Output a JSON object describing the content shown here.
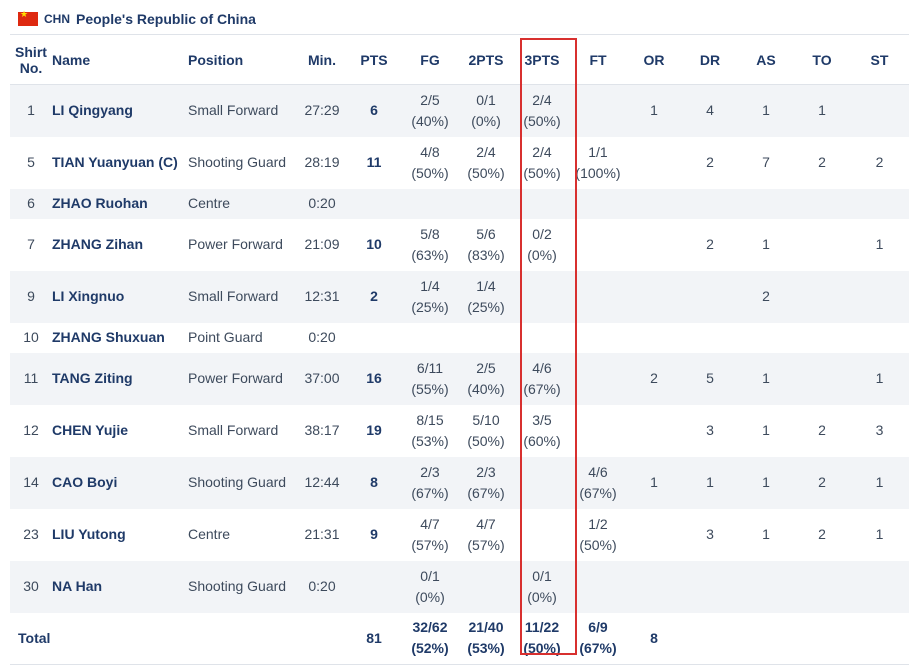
{
  "team": {
    "code": "CHN",
    "name": "People's Republic of China",
    "flag_icon": "china-flag-icon",
    "flag_color": "#de2910"
  },
  "columns": {
    "shirt_line1": "Shirt",
    "shirt_line2": "No.",
    "name": "Name",
    "position": "Position",
    "min": "Min.",
    "pts": "PTS",
    "fg": "FG",
    "pts2": "2PTS",
    "pts3": "3PTS",
    "ft": "FT",
    "or": "OR",
    "dr": "DR",
    "as": "AS",
    "to": "TO",
    "st": "ST"
  },
  "players": [
    {
      "no": "1",
      "name": "LI Qingyang",
      "position": "Small Forward",
      "min": "27:29",
      "pts": "6",
      "fg_a": "2/5",
      "fg_b": "(40%)",
      "p2_a": "0/1",
      "p2_b": "(0%)",
      "p3_a": "2/4",
      "p3_b": "(50%)",
      "ft_a": "",
      "ft_b": "",
      "or": "1",
      "dr": "4",
      "as": "1",
      "to": "1",
      "st": ""
    },
    {
      "no": "5",
      "name": "TIAN Yuanyuan  (C)",
      "position": "Shooting Guard",
      "min": "28:19",
      "pts": "11",
      "fg_a": "4/8",
      "fg_b": "(50%)",
      "p2_a": "2/4",
      "p2_b": "(50%)",
      "p3_a": "2/4",
      "p3_b": "(50%)",
      "ft_a": "1/1",
      "ft_b": "(100%)",
      "or": "",
      "dr": "2",
      "as": "7",
      "to": "2",
      "st": "2"
    },
    {
      "no": "6",
      "name": "ZHAO Ruohan",
      "position": "Centre",
      "min": "0:20",
      "pts": "",
      "fg_a": "",
      "fg_b": "",
      "p2_a": "",
      "p2_b": "",
      "p3_a": "",
      "p3_b": "",
      "ft_a": "",
      "ft_b": "",
      "or": "",
      "dr": "",
      "as": "",
      "to": "",
      "st": ""
    },
    {
      "no": "7",
      "name": "ZHANG Zihan",
      "position": "Power Forward",
      "min": "21:09",
      "pts": "10",
      "fg_a": "5/8",
      "fg_b": "(63%)",
      "p2_a": "5/6",
      "p2_b": "(83%)",
      "p3_a": "0/2",
      "p3_b": "(0%)",
      "ft_a": "",
      "ft_b": "",
      "or": "",
      "dr": "2",
      "as": "1",
      "to": "",
      "st": "1"
    },
    {
      "no": "9",
      "name": "LI Xingnuo",
      "position": "Small Forward",
      "min": "12:31",
      "pts": "2",
      "fg_a": "1/4",
      "fg_b": "(25%)",
      "p2_a": "1/4",
      "p2_b": "(25%)",
      "p3_a": "",
      "p3_b": "",
      "ft_a": "",
      "ft_b": "",
      "or": "",
      "dr": "",
      "as": "2",
      "to": "",
      "st": ""
    },
    {
      "no": "10",
      "name": "ZHANG Shuxuan",
      "position": "Point Guard",
      "min": "0:20",
      "pts": "",
      "fg_a": "",
      "fg_b": "",
      "p2_a": "",
      "p2_b": "",
      "p3_a": "",
      "p3_b": "",
      "ft_a": "",
      "ft_b": "",
      "or": "",
      "dr": "",
      "as": "",
      "to": "",
      "st": ""
    },
    {
      "no": "11",
      "name": "TANG Ziting",
      "position": "Power Forward",
      "min": "37:00",
      "pts": "16",
      "fg_a": "6/11",
      "fg_b": "(55%)",
      "p2_a": "2/5",
      "p2_b": "(40%)",
      "p3_a": "4/6",
      "p3_b": "(67%)",
      "ft_a": "",
      "ft_b": "",
      "or": "2",
      "dr": "5",
      "as": "1",
      "to": "",
      "st": "1"
    },
    {
      "no": "12",
      "name": "CHEN Yujie",
      "position": "Small Forward",
      "min": "38:17",
      "pts": "19",
      "fg_a": "8/15",
      "fg_b": "(53%)",
      "p2_a": "5/10",
      "p2_b": "(50%)",
      "p3_a": "3/5",
      "p3_b": "(60%)",
      "ft_a": "",
      "ft_b": "",
      "or": "",
      "dr": "3",
      "as": "1",
      "to": "2",
      "st": "3"
    },
    {
      "no": "14",
      "name": "CAO Boyi",
      "position": "Shooting Guard",
      "min": "12:44",
      "pts": "8",
      "fg_a": "2/3",
      "fg_b": "(67%)",
      "p2_a": "2/3",
      "p2_b": "(67%)",
      "p3_a": "",
      "p3_b": "",
      "ft_a": "4/6",
      "ft_b": "(67%)",
      "or": "1",
      "dr": "1",
      "as": "1",
      "to": "2",
      "st": "1"
    },
    {
      "no": "23",
      "name": "LIU Yutong",
      "position": "Centre",
      "min": "21:31",
      "pts": "9",
      "fg_a": "4/7",
      "fg_b": "(57%)",
      "p2_a": "4/7",
      "p2_b": "(57%)",
      "p3_a": "",
      "p3_b": "",
      "ft_a": "1/2",
      "ft_b": "(50%)",
      "or": "",
      "dr": "3",
      "as": "1",
      "to": "2",
      "st": "1"
    },
    {
      "no": "30",
      "name": "NA Han",
      "position": "Shooting Guard",
      "min": "0:20",
      "pts": "",
      "fg_a": "0/1",
      "fg_b": "(0%)",
      "p2_a": "",
      "p2_b": "",
      "p3_a": "0/1",
      "p3_b": "(0%)",
      "ft_a": "",
      "ft_b": "",
      "or": "",
      "dr": "",
      "as": "",
      "to": "",
      "st": ""
    }
  ],
  "total": {
    "label": "Total",
    "pts": "81",
    "fg_a": "32/62",
    "fg_b": "(52%)",
    "p2_a": "21/40",
    "p2_b": "(53%)",
    "p3_a": "11/22",
    "p3_b": "(50%)",
    "ft_a": "6/9",
    "ft_b": "(67%)",
    "or": "8"
  },
  "highlight_color": "#d8302f"
}
